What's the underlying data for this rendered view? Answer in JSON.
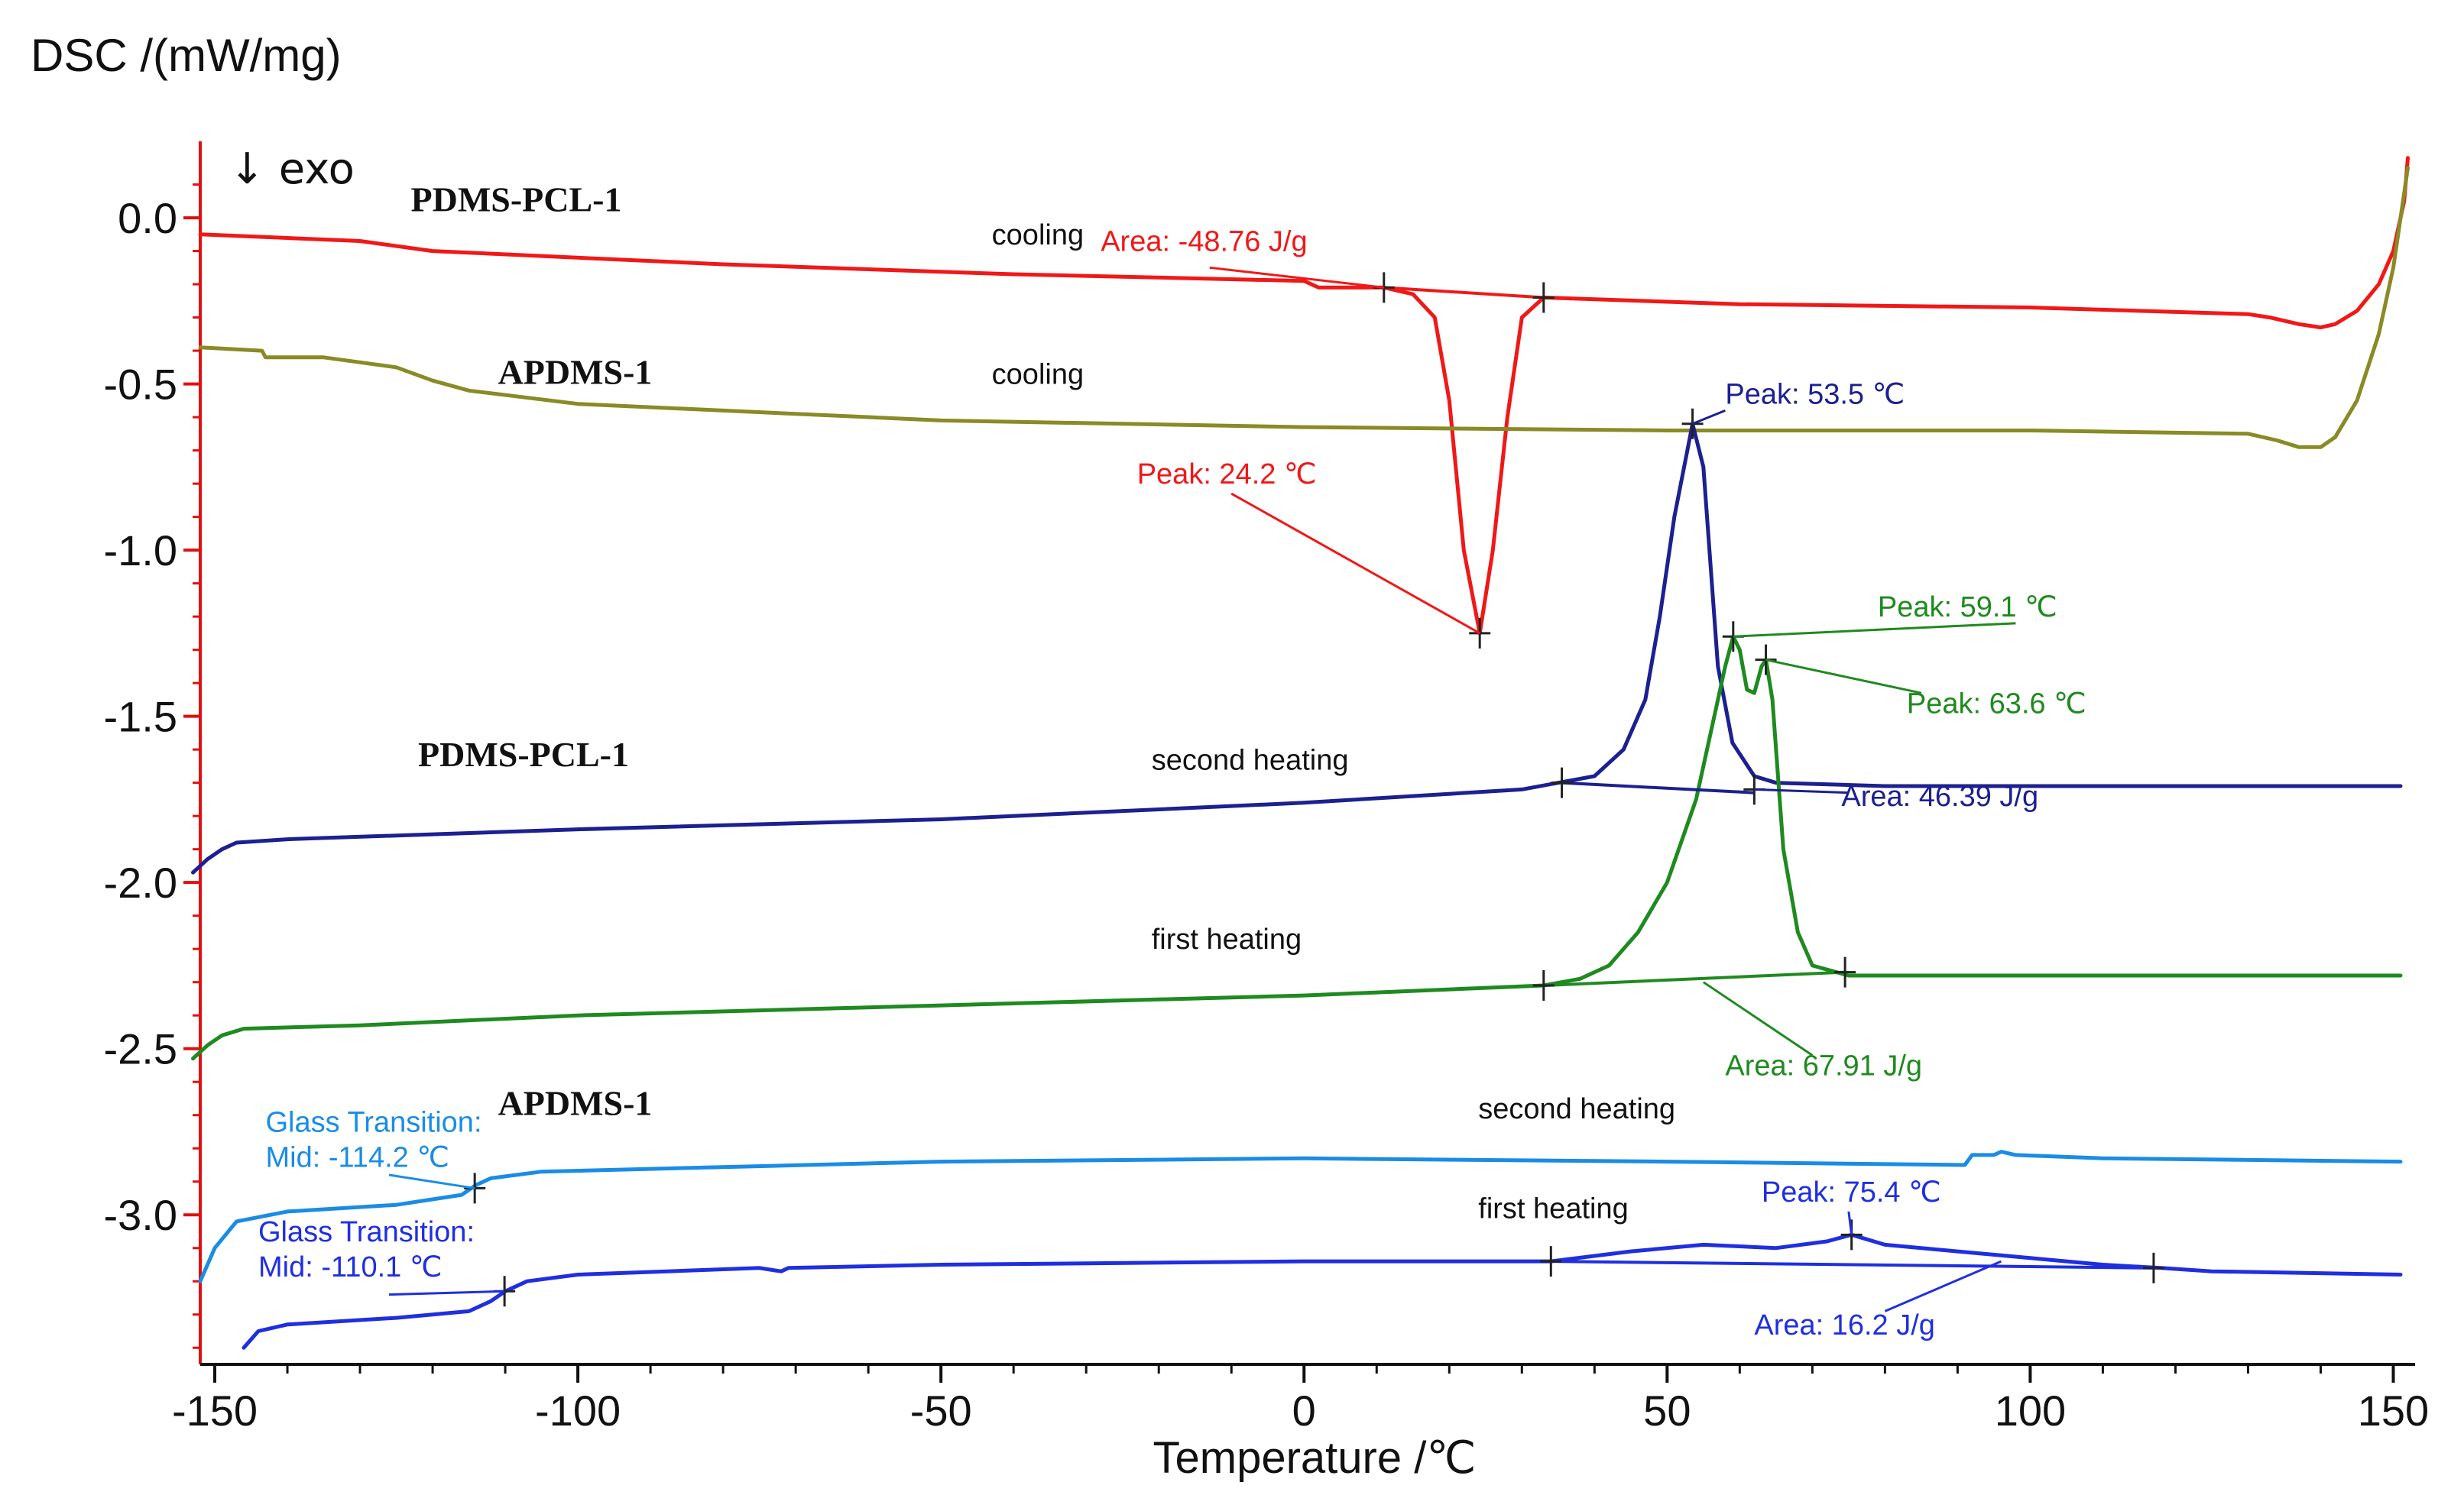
{
  "chart_data": {
    "type": "line",
    "title": "",
    "ylabel": "DSC /(mW/mg)",
    "xlabel": "Temperature /℃",
    "xlim": [
      -152,
      153
    ],
    "ylim": [
      -3.45,
      0.23
    ],
    "xticks": [
      -150,
      -100,
      -50,
      0,
      50,
      100,
      150
    ],
    "yticks": [
      0.0,
      -0.5,
      -1.0,
      -1.5,
      -2.0,
      -2.5,
      -3.0
    ],
    "ytick_labels": [
      "0.0",
      "-0.5",
      "-1.0",
      "-1.5",
      "-2.0",
      "-2.5",
      "-3.0"
    ],
    "exo_marker": "↓  exo",
    "series": [
      {
        "name": "PDMS-PCL-1 cooling",
        "color": "#f01818",
        "points": [
          [
            152,
            0.18
          ],
          [
            151.5,
            0.05
          ],
          [
            150,
            -0.1
          ],
          [
            148,
            -0.2
          ],
          [
            145,
            -0.28
          ],
          [
            142,
            -0.32
          ],
          [
            140,
            -0.33
          ],
          [
            137,
            -0.32
          ],
          [
            133,
            -0.3
          ],
          [
            130,
            -0.29
          ],
          [
            100,
            -0.27
          ],
          [
            60,
            -0.26
          ],
          [
            33,
            -0.24
          ],
          [
            30,
            -0.3
          ],
          [
            28,
            -0.6
          ],
          [
            26,
            -1.0
          ],
          [
            24.2,
            -1.25
          ],
          [
            22,
            -1.0
          ],
          [
            20,
            -0.55
          ],
          [
            18,
            -0.3
          ],
          [
            15,
            -0.23
          ],
          [
            11,
            -0.21
          ],
          [
            2,
            -0.21
          ],
          [
            0,
            -0.19
          ],
          [
            -40,
            -0.17
          ],
          [
            -80,
            -0.14
          ],
          [
            -120,
            -0.1
          ],
          [
            -130,
            -0.07
          ],
          [
            -152,
            -0.05
          ]
        ]
      },
      {
        "name": "APDMS-1 cooling",
        "color": "#8a8a26",
        "points": [
          [
            152,
            0.15
          ],
          [
            151,
            0.0
          ],
          [
            150,
            -0.15
          ],
          [
            148,
            -0.35
          ],
          [
            145,
            -0.55
          ],
          [
            142,
            -0.66
          ],
          [
            140,
            -0.69
          ],
          [
            137,
            -0.69
          ],
          [
            134,
            -0.67
          ],
          [
            130,
            -0.65
          ],
          [
            100,
            -0.64
          ],
          [
            50,
            -0.64
          ],
          [
            0,
            -0.63
          ],
          [
            -50,
            -0.61
          ],
          [
            -100,
            -0.56
          ],
          [
            -115,
            -0.52
          ],
          [
            -120,
            -0.49
          ],
          [
            -125,
            -0.45
          ],
          [
            -135,
            -0.42
          ],
          [
            -143,
            -0.42
          ],
          [
            -143.5,
            -0.4
          ],
          [
            -152,
            -0.39
          ]
        ]
      },
      {
        "name": "PDMS-PCL-1 second heating",
        "color": "#1c2090",
        "points": [
          [
            -153,
            -1.97
          ],
          [
            -151,
            -1.93
          ],
          [
            -149,
            -1.9
          ],
          [
            -147,
            -1.88
          ],
          [
            -140,
            -1.87
          ],
          [
            -100,
            -1.84
          ],
          [
            -50,
            -1.81
          ],
          [
            0,
            -1.76
          ],
          [
            30,
            -1.72
          ],
          [
            35,
            -1.7
          ],
          [
            40,
            -1.68
          ],
          [
            44,
            -1.6
          ],
          [
            47,
            -1.45
          ],
          [
            49,
            -1.2
          ],
          [
            51,
            -0.9
          ],
          [
            53.5,
            -0.62
          ],
          [
            55,
            -0.75
          ],
          [
            56,
            -1.05
          ],
          [
            57,
            -1.35
          ],
          [
            59,
            -1.58
          ],
          [
            62,
            -1.68
          ],
          [
            65,
            -1.7
          ],
          [
            80,
            -1.71
          ],
          [
            151,
            -1.71
          ]
        ]
      },
      {
        "name": "PDMS-PCL-1 first heating",
        "color": "#1f8a1f",
        "points": [
          [
            -153,
            -2.53
          ],
          [
            -151,
            -2.49
          ],
          [
            -149,
            -2.46
          ],
          [
            -146,
            -2.44
          ],
          [
            -130,
            -2.43
          ],
          [
            -100,
            -2.4
          ],
          [
            -50,
            -2.37
          ],
          [
            0,
            -2.34
          ],
          [
            33,
            -2.31
          ],
          [
            38,
            -2.29
          ],
          [
            42,
            -2.25
          ],
          [
            46,
            -2.15
          ],
          [
            50,
            -2.0
          ],
          [
            54,
            -1.75
          ],
          [
            56,
            -1.55
          ],
          [
            58,
            -1.35
          ],
          [
            59.1,
            -1.26
          ],
          [
            60,
            -1.3
          ],
          [
            61,
            -1.42
          ],
          [
            62,
            -1.43
          ],
          [
            63,
            -1.35
          ],
          [
            63.6,
            -1.33
          ],
          [
            64.5,
            -1.45
          ],
          [
            66,
            -1.9
          ],
          [
            68,
            -2.15
          ],
          [
            70,
            -2.25
          ],
          [
            75,
            -2.28
          ],
          [
            100,
            -2.28
          ],
          [
            151,
            -2.28
          ]
        ]
      },
      {
        "name": "APDMS-1 second heating",
        "color": "#1a8ce6",
        "points": [
          [
            -152,
            -3.2
          ],
          [
            -150,
            -3.1
          ],
          [
            -147,
            -3.02
          ],
          [
            -140,
            -2.99
          ],
          [
            -125,
            -2.97
          ],
          [
            -116,
            -2.94
          ],
          [
            -114,
            -2.91
          ],
          [
            -112,
            -2.89
          ],
          [
            -105,
            -2.87
          ],
          [
            -50,
            -2.84
          ],
          [
            0,
            -2.83
          ],
          [
            50,
            -2.84
          ],
          [
            91,
            -2.85
          ],
          [
            92,
            -2.82
          ],
          [
            95,
            -2.82
          ],
          [
            96,
            -2.81
          ],
          [
            98,
            -2.82
          ],
          [
            110,
            -2.83
          ],
          [
            151,
            -2.84
          ]
        ]
      },
      {
        "name": "APDMS-1 first heating",
        "color": "#1f2fe0",
        "points": [
          [
            -146,
            -3.4
          ],
          [
            -144,
            -3.35
          ],
          [
            -140,
            -3.33
          ],
          [
            -125,
            -3.31
          ],
          [
            -115,
            -3.29
          ],
          [
            -112,
            -3.26
          ],
          [
            -110,
            -3.23
          ],
          [
            -107,
            -3.2
          ],
          [
            -100,
            -3.18
          ],
          [
            -75,
            -3.16
          ],
          [
            -72,
            -3.17
          ],
          [
            -71,
            -3.16
          ],
          [
            -50,
            -3.15
          ],
          [
            0,
            -3.14
          ],
          [
            34,
            -3.14
          ],
          [
            45,
            -3.11
          ],
          [
            55,
            -3.09
          ],
          [
            65,
            -3.1
          ],
          [
            72,
            -3.08
          ],
          [
            75.4,
            -3.06
          ],
          [
            80,
            -3.09
          ],
          [
            90,
            -3.11
          ],
          [
            100,
            -3.13
          ],
          [
            110,
            -3.15
          ],
          [
            118,
            -3.16
          ],
          [
            125,
            -3.17
          ],
          [
            151,
            -3.18
          ]
        ]
      }
    ],
    "baselines": [
      {
        "color": "#f01818",
        "points": [
          [
            11,
            -0.21
          ],
          [
            33,
            -0.24
          ]
        ]
      },
      {
        "color": "#1c2090",
        "points": [
          [
            35.5,
            -1.7
          ],
          [
            62,
            -1.73
          ]
        ]
      },
      {
        "color": "#1f8a1f",
        "points": [
          [
            33,
            -2.31
          ],
          [
            74.5,
            -2.27
          ]
        ]
      },
      {
        "color": "#1f2fe0",
        "points": [
          [
            34,
            -3.14
          ],
          [
            117,
            -3.16
          ]
        ]
      }
    ],
    "markers": [
      {
        "color": "#222222",
        "x": 11,
        "y": -0.21
      },
      {
        "color": "#222222",
        "x": 33,
        "y": -0.24
      },
      {
        "color": "#222222",
        "x": 24.2,
        "y": -1.25
      },
      {
        "color": "#222222",
        "x": 53.5,
        "y": -0.62
      },
      {
        "color": "#222222",
        "x": 35.5,
        "y": -1.7
      },
      {
        "color": "#222222",
        "x": 62,
        "y": -1.72
      },
      {
        "color": "#222222",
        "x": 59.1,
        "y": -1.26
      },
      {
        "color": "#222222",
        "x": 63.6,
        "y": -1.33
      },
      {
        "color": "#222222",
        "x": 33,
        "y": -2.31
      },
      {
        "color": "#222222",
        "x": 74.5,
        "y": -2.27
      },
      {
        "color": "#222222",
        "x": -114.2,
        "y": -2.92
      },
      {
        "color": "#222222",
        "x": -110.1,
        "y": -3.23
      },
      {
        "color": "#222222",
        "x": 34,
        "y": -3.14
      },
      {
        "color": "#222222",
        "x": 75.4,
        "y": -3.06
      },
      {
        "color": "#222222",
        "x": 117,
        "y": -3.16
      }
    ],
    "curve_labels": [
      {
        "text": "PDMS-PCL-1",
        "x": -123,
        "y": 0.02,
        "bold": true
      },
      {
        "text": "cooling",
        "x": -43,
        "y": -0.08,
        "bold": false
      },
      {
        "text": "APDMS-1",
        "x": -111,
        "y": -0.5,
        "bold": true
      },
      {
        "text": "cooling",
        "x": -43,
        "y": -0.5,
        "bold": false
      },
      {
        "text": "PDMS-PCL-1",
        "x": -122,
        "y": -1.65,
        "bold": true
      },
      {
        "text": "second heating",
        "x": -21,
        "y": -1.66,
        "bold": false
      },
      {
        "text": "first heating",
        "x": -21,
        "y": -2.2,
        "bold": false
      },
      {
        "text": "APDMS-1",
        "x": -111,
        "y": -2.7,
        "bold": true
      },
      {
        "text": "second heating",
        "x": 24,
        "y": -2.71,
        "bold": false
      },
      {
        "text": "first heating",
        "x": 24,
        "y": -3.01,
        "bold": false
      }
    ],
    "annotations": [
      {
        "lines": [
          "Area: -48.76 J/g"
        ],
        "color": "#f01818",
        "x": -28,
        "y": -0.1,
        "anchor": "start",
        "leader": [
          [
            -13,
            -0.15
          ],
          [
            11,
            -0.21
          ]
        ]
      },
      {
        "lines": [
          "Peak: 24.2 ℃"
        ],
        "color": "#f01818",
        "x": -23,
        "y": -0.8,
        "anchor": "start",
        "leader": [
          [
            -10,
            -0.83
          ],
          [
            24.2,
            -1.25
          ]
        ]
      },
      {
        "lines": [
          "Peak: 53.5 ℃"
        ],
        "color": "#1c2090",
        "x": 58,
        "y": -0.56,
        "anchor": "start",
        "leader": [
          [
            58,
            -0.58
          ],
          [
            53.5,
            -0.62
          ]
        ]
      },
      {
        "lines": [
          "Peak: 59.1 ℃"
        ],
        "color": "#1f8a1f",
        "x": 79,
        "y": -1.2,
        "anchor": "start",
        "leader": [
          [
            98,
            -1.22
          ],
          [
            59.1,
            -1.26
          ]
        ]
      },
      {
        "lines": [
          "Peak: 63.6 ℃"
        ],
        "color": "#1f8a1f",
        "x": 83,
        "y": -1.49,
        "anchor": "start",
        "leader": [
          [
            85,
            -1.43
          ],
          [
            63.6,
            -1.33
          ]
        ]
      },
      {
        "lines": [
          "Area: 46.39 J/g"
        ],
        "color": "#1c2090",
        "x": 74,
        "y": -1.77,
        "anchor": "start",
        "leader": [
          [
            75,
            -1.73
          ],
          [
            62,
            -1.72
          ]
        ]
      },
      {
        "lines": [
          "Area: 67.91 J/g"
        ],
        "color": "#1f8a1f",
        "x": 58,
        "y": -2.58,
        "anchor": "start",
        "leader": [
          [
            70,
            -2.52
          ],
          [
            55,
            -2.3
          ]
        ]
      },
      {
        "lines": [
          "Glass Transition:",
          "Mid:  -114.2 ℃"
        ],
        "color": "#1a8ce6",
        "x": -143,
        "y": -2.75,
        "anchor": "start",
        "leader": [
          [
            -126,
            -2.88
          ],
          [
            -114.2,
            -2.92
          ]
        ]
      },
      {
        "lines": [
          "Glass Transition:",
          "Mid:  -110.1 ℃"
        ],
        "color": "#1f2fe0",
        "x": -144,
        "y": -3.08,
        "anchor": "start",
        "leader": [
          [
            -126,
            -3.24
          ],
          [
            -110.1,
            -3.23
          ]
        ]
      },
      {
        "lines": [
          "Peak: 75.4 ℃"
        ],
        "color": "#1f2fe0",
        "x": 63,
        "y": -2.96,
        "anchor": "start",
        "leader": [
          [
            75,
            -2.99
          ],
          [
            75.4,
            -3.06
          ]
        ]
      },
      {
        "lines": [
          "Area: 16.2 J/g"
        ],
        "color": "#1f2fe0",
        "x": 62,
        "y": -3.36,
        "anchor": "start",
        "leader": [
          [
            80,
            -3.29
          ],
          [
            96,
            -3.14
          ]
        ]
      }
    ]
  }
}
